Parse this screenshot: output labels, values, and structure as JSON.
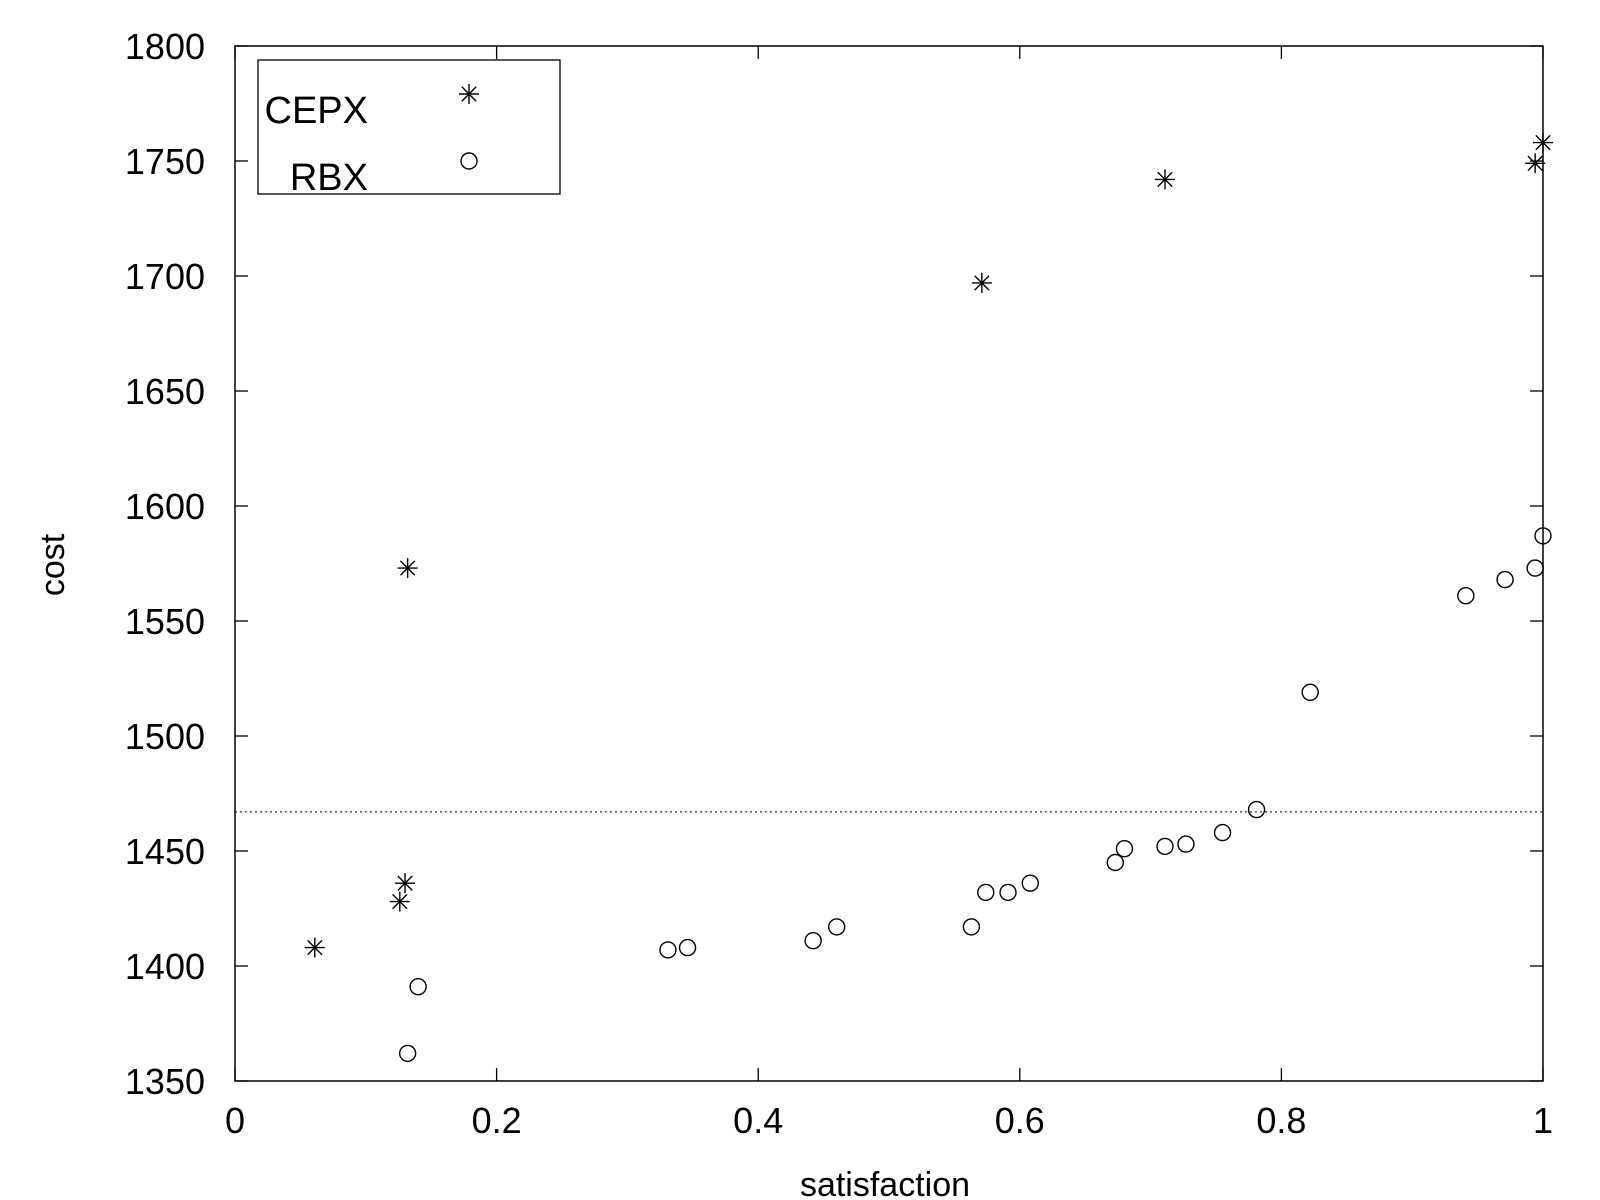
{
  "chart_data": {
    "type": "scatter",
    "xlabel": "satisfaction",
    "ylabel": "cost",
    "xlim": [
      0,
      1
    ],
    "ylim": [
      1350,
      1800
    ],
    "xticks": [
      0,
      0.2,
      0.4,
      0.6,
      0.8,
      1
    ],
    "xtick_labels": [
      "0",
      "0.2",
      "0.4",
      "0.6",
      "0.8",
      "1"
    ],
    "yticks": [
      1350,
      1400,
      1450,
      1500,
      1550,
      1600,
      1650,
      1700,
      1750,
      1800
    ],
    "ytick_labels": [
      "1350",
      "1400",
      "1450",
      "1500",
      "1550",
      "1600",
      "1650",
      "1700",
      "1750",
      "1800"
    ],
    "grid": false,
    "legend_position": "top-left",
    "reference_line": {
      "y": 1467,
      "style": "dotted"
    },
    "series": [
      {
        "name": "CEPX",
        "marker": "asterisk",
        "points": [
          [
            0.061,
            1408
          ],
          [
            0.126,
            1428
          ],
          [
            0.13,
            1436
          ],
          [
            0.132,
            1573
          ],
          [
            0.571,
            1697
          ],
          [
            0.711,
            1742
          ],
          [
            0.994,
            1749
          ],
          [
            1.0,
            1758
          ]
        ]
      },
      {
        "name": "RBX",
        "marker": "circle",
        "points": [
          [
            0.132,
            1362
          ],
          [
            0.14,
            1391
          ],
          [
            0.331,
            1407
          ],
          [
            0.346,
            1408
          ],
          [
            0.442,
            1411
          ],
          [
            0.46,
            1417
          ],
          [
            0.563,
            1417
          ],
          [
            0.574,
            1432
          ],
          [
            0.591,
            1432
          ],
          [
            0.608,
            1436
          ],
          [
            0.673,
            1445
          ],
          [
            0.68,
            1451
          ],
          [
            0.711,
            1452
          ],
          [
            0.727,
            1453
          ],
          [
            0.755,
            1458
          ],
          [
            0.781,
            1468
          ],
          [
            0.822,
            1519
          ],
          [
            0.941,
            1561
          ],
          [
            0.971,
            1568
          ],
          [
            0.994,
            1573
          ],
          [
            1.0,
            1587
          ]
        ]
      }
    ]
  }
}
